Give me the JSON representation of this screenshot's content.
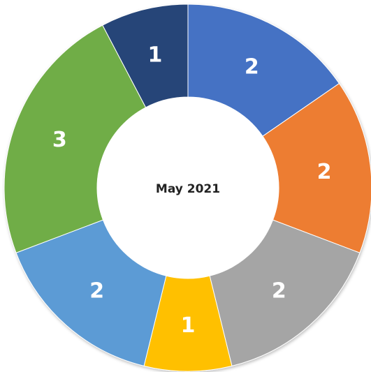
{
  "chart_data": {
    "type": "donut",
    "title": "May 2021",
    "values": [
      2,
      2,
      2,
      1,
      2,
      3,
      1
    ],
    "colors": [
      "#4472c4",
      "#ed7d31",
      "#a5a5a5",
      "#ffc000",
      "#5b9bd5",
      "#70ad47",
      "#264478"
    ]
  }
}
